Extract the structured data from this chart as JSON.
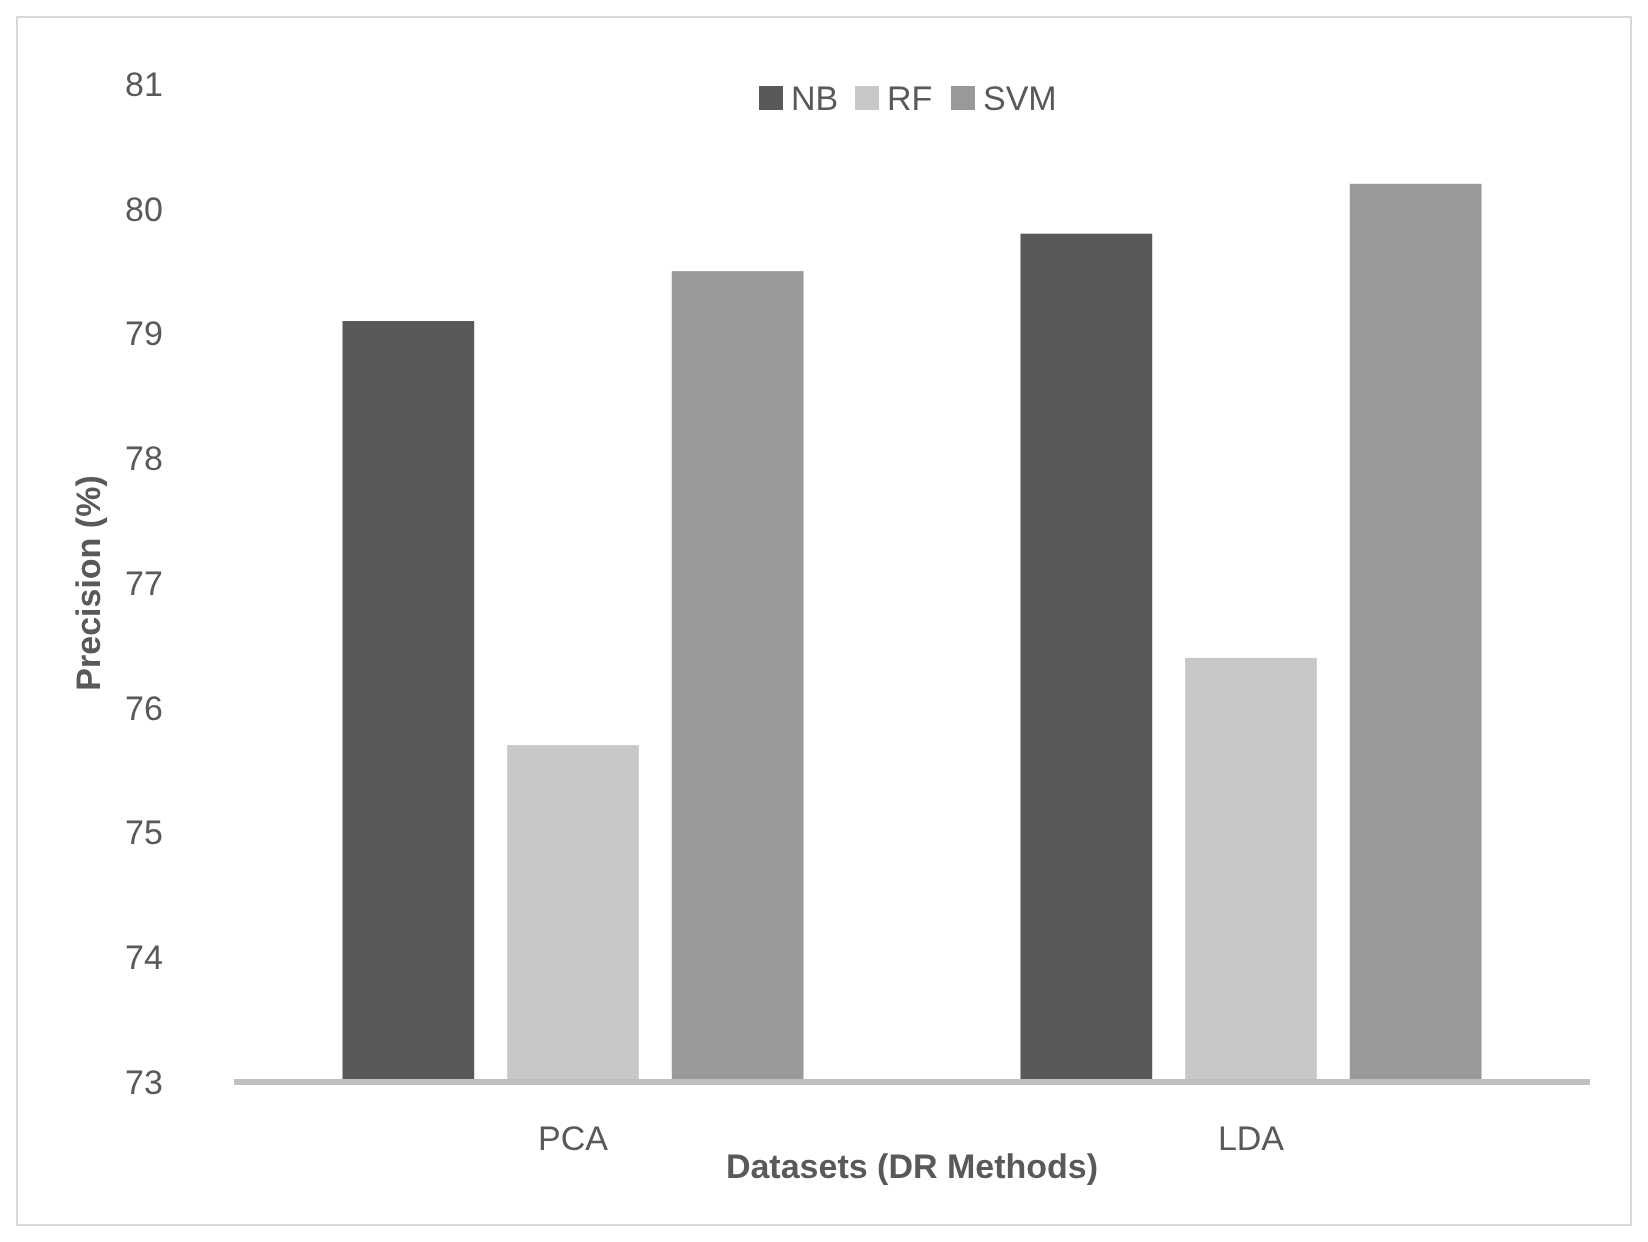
{
  "chart_data": {
    "type": "bar",
    "xlabel": "Datasets (DR Methods)",
    "ylabel": "Precision (%)",
    "categories": [
      "PCA",
      "LDA"
    ],
    "series": [
      {
        "name": "NB",
        "color": "#595959",
        "values": [
          79.1,
          79.8
        ]
      },
      {
        "name": "RF",
        "color": "#c8c8c8",
        "values": [
          75.7,
          76.4
        ]
      },
      {
        "name": "SVM",
        "color": "#999999",
        "values": [
          79.5,
          80.2
        ]
      }
    ],
    "ylim": [
      73,
      81
    ],
    "yticks": [
      73,
      74,
      75,
      76,
      77,
      78,
      79,
      80,
      81
    ],
    "grid": false,
    "legend": "top"
  }
}
